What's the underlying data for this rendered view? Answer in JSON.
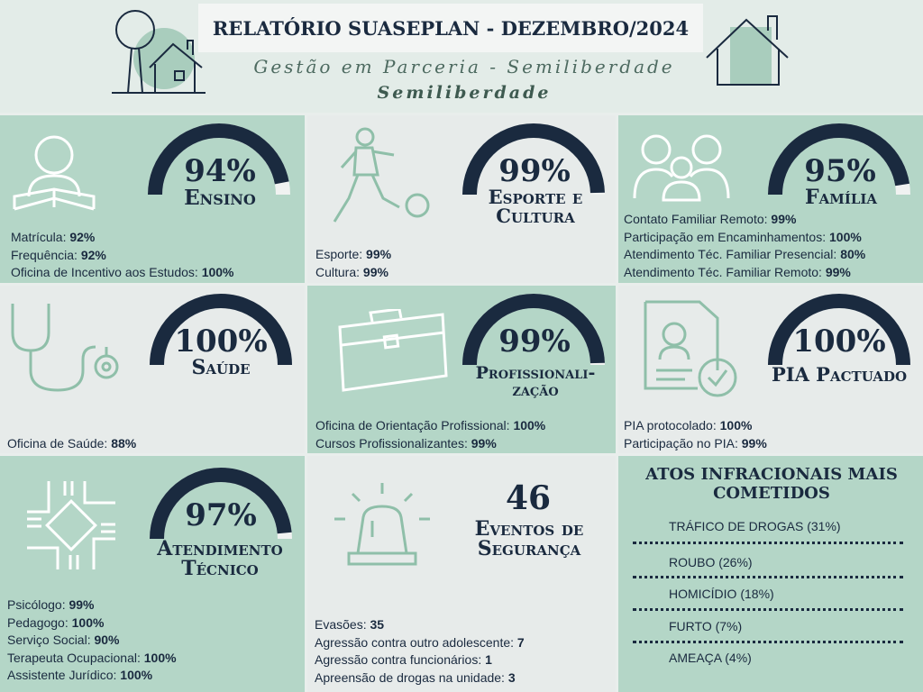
{
  "header": {
    "title": "RELATÓRIO SUASEPLAN - DEZEMBRO/2024",
    "subtitle": "Gestão em Parceria - Semiliberdade",
    "subtitle2": "Semiliberdade"
  },
  "ensino": {
    "percent": "94%",
    "value": 94,
    "title": "Ensino",
    "items": [
      {
        "label": "Matrícula: ",
        "value": "92%"
      },
      {
        "label": "Frequência: ",
        "value": "92%"
      },
      {
        "label": "Oficina de Incentivo aos Estudos: ",
        "value": "100%"
      }
    ]
  },
  "esporte": {
    "percent": "99%",
    "value": 99,
    "title_line1": "Esporte e",
    "title_line2": "Cultura",
    "items": [
      {
        "label": "Esporte: ",
        "value": "99%"
      },
      {
        "label": "Cultura: ",
        "value": "99%"
      }
    ]
  },
  "familia": {
    "percent": "95%",
    "value": 95,
    "title": "Família",
    "items": [
      {
        "label": "Contato Familiar Remoto: ",
        "value": "99%"
      },
      {
        "label": "Participação em Encaminhamentos: ",
        "value": "100%"
      },
      {
        "label": "Atendimento Téc. Familiar Presencial: ",
        "value": "80%"
      },
      {
        "label": "Atendimento Téc. Familiar Remoto: ",
        "value": "99%"
      }
    ]
  },
  "saude": {
    "percent": "100%",
    "value": 100,
    "title": "Saúde",
    "items": [
      {
        "label": "Oficina de Saúde: ",
        "value": "88%"
      }
    ]
  },
  "profissional": {
    "percent": "99%",
    "value": 99,
    "title_line1": "Profissionali-",
    "title_line2": "zação",
    "items": [
      {
        "label": "Oficina de Orientação Profissional: ",
        "value": "100%"
      },
      {
        "label": "Cursos Profissionalizantes: ",
        "value": "99%"
      }
    ]
  },
  "pia": {
    "percent": "100%",
    "value": 100,
    "title": "PIA Pactuado",
    "items": [
      {
        "label": "PIA protocolado: ",
        "value": "100%"
      },
      {
        "label": "Participação no PIA: ",
        "value": "99%"
      }
    ]
  },
  "atendimento": {
    "percent": "97%",
    "value": 97,
    "title_line1": "Atendimento",
    "title_line2": "Técnico",
    "items": [
      {
        "label": "Psicólogo: ",
        "value": "99%"
      },
      {
        "label": "Pedagogo: ",
        "value": "100%"
      },
      {
        "label": "Serviço Social: ",
        "value": "90%"
      },
      {
        "label": "Terapeuta Ocupacional: ",
        "value": "100%"
      },
      {
        "label": "Assistente Jurídico: ",
        "value": "100%"
      }
    ]
  },
  "seguranca": {
    "count": "46",
    "title_line1": "Eventos de",
    "title_line2": "Segurança",
    "items": [
      {
        "label": "Evasões: ",
        "value": "35"
      },
      {
        "label": "Agressão contra outro adolescente: ",
        "value": "7"
      },
      {
        "label": "Agressão contra funcionários: ",
        "value": "1"
      },
      {
        "label": "Apreensão de drogas na unidade: ",
        "value": "3"
      }
    ]
  },
  "atos": {
    "title_line1": "ATOS INFRACIONAIS MAIS",
    "title_line2": "COMETIDOS",
    "items": [
      "TRÁFICO DE DROGAS (31%)",
      "ROUBO (26%)",
      "HOMICÍDIO (18%)",
      "FURTO (7%)",
      "AMEAÇA (4%)"
    ]
  },
  "colors": {
    "green_panel": "#b4d6c7",
    "gray_panel": "#e7ebea",
    "navy": "#1a2a3f",
    "icon_green": "#8fbfa9"
  },
  "icons": [
    "reader-icon",
    "soccer-player-icon",
    "family-icon",
    "stethoscope-icon",
    "briefcase-icon",
    "document-check-icon",
    "hands-together-icon",
    "siren-icon",
    "tree-house-icon",
    "house-icon"
  ]
}
